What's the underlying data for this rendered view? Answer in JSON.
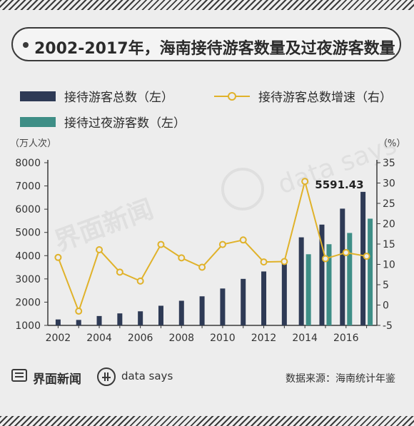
{
  "title": "2002-2017年，海南接待游客数量及过夜游客数量",
  "legend": {
    "total": "接待游客总数（左）",
    "growth": "接待游客总数增速（右）",
    "overnight": "接待过夜游客数（左）"
  },
  "units": {
    "left": "（万人次）",
    "right": "（%）"
  },
  "annotation": "5591.43",
  "watermark": {
    "brand": "界面新闻",
    "ds": "data says"
  },
  "footer": {
    "brand": "界面新闻",
    "ds": "data says",
    "source": "数据来源：海南统计年鉴"
  },
  "colors": {
    "total": "#2e3a55",
    "overnight": "#3e8e86",
    "growth": "#e0b22a",
    "frame": "#3a3a3a",
    "background": "#ededed"
  },
  "chart_data": {
    "type": "bar",
    "x": [
      2002,
      2003,
      2004,
      2005,
      2006,
      2007,
      2008,
      2009,
      2010,
      2011,
      2012,
      2013,
      2014,
      2015,
      2016,
      2017
    ],
    "x_tick_labels": [
      "2002",
      "2004",
      "2006",
      "2008",
      "2010",
      "2012",
      "2014",
      "2016"
    ],
    "ylim_left": [
      1000,
      8000
    ],
    "yticks_left": [
      1000,
      2000,
      3000,
      4000,
      5000,
      6000,
      7000,
      8000
    ],
    "ylim_right": [
      -5,
      35
    ],
    "yticks_right": [
      -5,
      0,
      5,
      10,
      15,
      20,
      25,
      30,
      35
    ],
    "grid": false,
    "series": [
      {
        "name": "接待游客总数（左）",
        "type": "bar",
        "axis": "left",
        "values": [
          1255,
          1235,
          1403,
          1516,
          1606,
          1845,
          2060,
          2251,
          2587,
          3001,
          3320,
          3672,
          4789,
          5336,
          6023,
          6745
        ]
      },
      {
        "name": "接待过夜游客数（左）",
        "type": "bar",
        "axis": "left",
        "values": [
          null,
          null,
          null,
          null,
          null,
          null,
          null,
          null,
          null,
          null,
          null,
          null,
          4061,
          4493,
          4977,
          5591.43
        ]
      },
      {
        "name": "接待游客总数增速（右）",
        "type": "line",
        "axis": "right",
        "values": [
          11.7,
          -1.5,
          13.6,
          8.1,
          5.9,
          14.9,
          11.6,
          9.3,
          14.9,
          16.0,
          10.6,
          10.7,
          30.4,
          11.4,
          12.9,
          12.0
        ]
      }
    ]
  }
}
